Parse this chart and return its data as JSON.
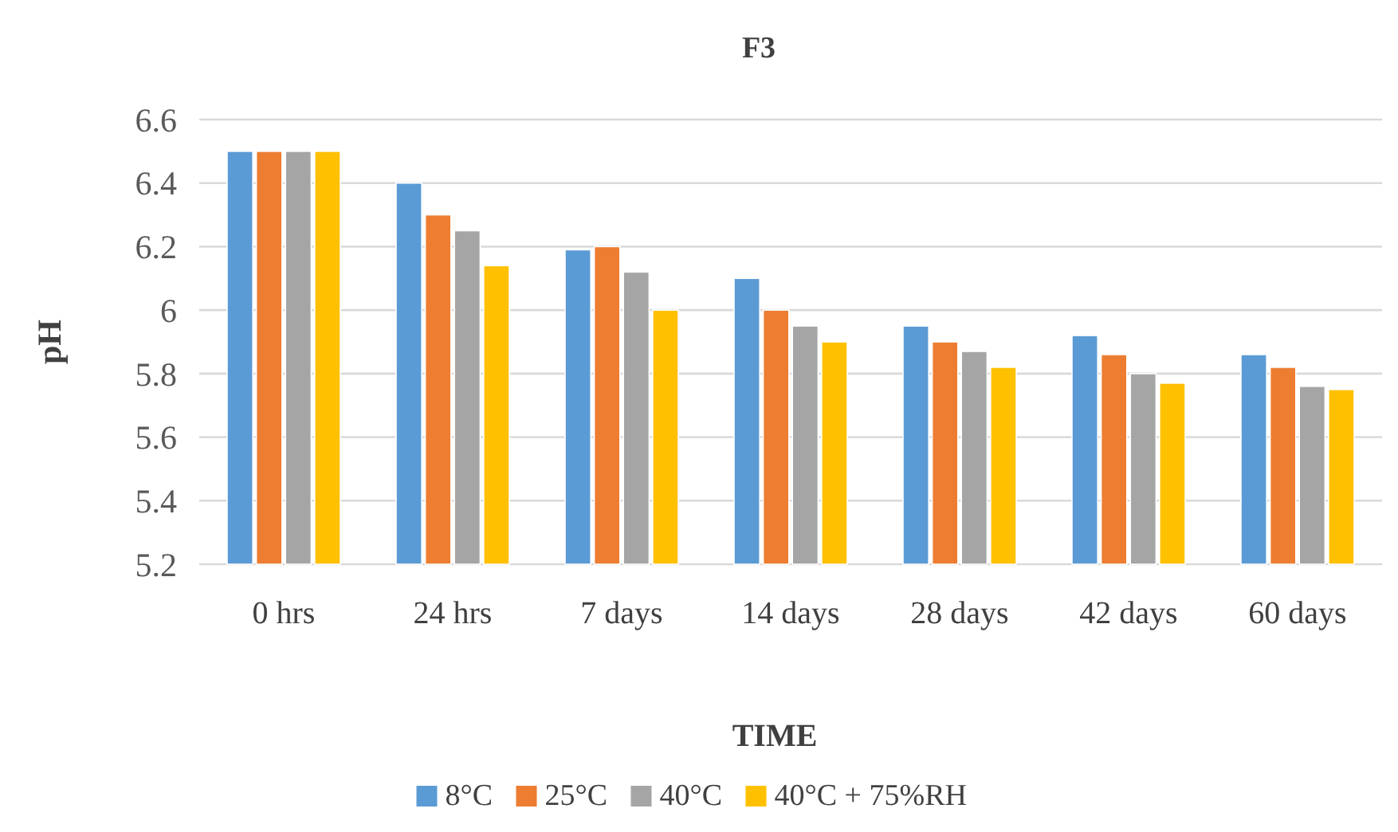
{
  "chart_data": {
    "type": "bar",
    "title": "F3",
    "xlabel": "TIME",
    "ylabel": "pH",
    "categories": [
      "0 hrs",
      "24 hrs",
      "7 days",
      "14 days",
      "28 days",
      "42 days",
      "60 days"
    ],
    "series": [
      {
        "name": "8°C",
        "color": "#5b9bd5",
        "values": [
          6.5,
          6.4,
          6.19,
          6.1,
          5.95,
          5.92,
          5.86
        ]
      },
      {
        "name": "25°C",
        "color": "#ed7d31",
        "values": [
          6.5,
          6.3,
          6.2,
          6.0,
          5.9,
          5.86,
          5.82
        ]
      },
      {
        "name": "40°C",
        "color": "#a5a5a5",
        "values": [
          6.5,
          6.25,
          6.12,
          5.95,
          5.87,
          5.8,
          5.76
        ]
      },
      {
        "name": "40°C + 75%RH",
        "color": "#ffc000",
        "values": [
          6.5,
          6.14,
          6.0,
          5.9,
          5.82,
          5.77,
          5.75
        ]
      }
    ],
    "ylim": [
      5.2,
      6.6
    ],
    "yticks": [
      5.2,
      5.4,
      5.6,
      5.8,
      6,
      6.2,
      6.4,
      6.6
    ],
    "grid": "y",
    "legend": "bottom"
  }
}
